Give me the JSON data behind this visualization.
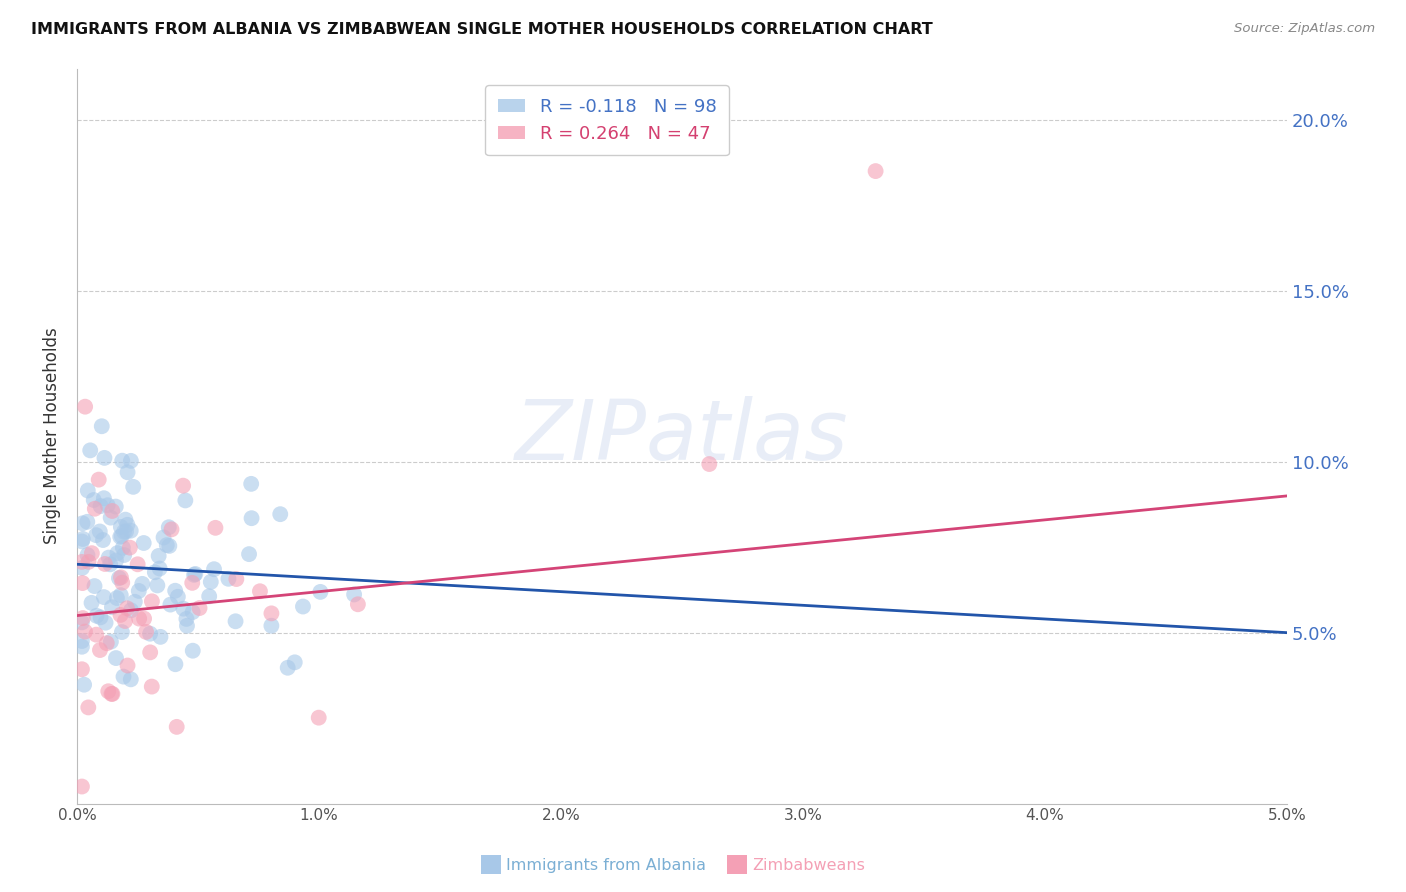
{
  "title": "IMMIGRANTS FROM ALBANIA VS ZIMBABWEAN SINGLE MOTHER HOUSEHOLDS CORRELATION CHART",
  "source": "Source: ZipAtlas.com",
  "ylabel": "Single Mother Households",
  "y_ticks": [
    0.05,
    0.1,
    0.15,
    0.2
  ],
  "y_tick_labels": [
    "5.0%",
    "10.0%",
    "15.0%",
    "20.0%"
  ],
  "x_ticks": [
    0.0,
    0.01,
    0.02,
    0.03,
    0.04,
    0.05
  ],
  "x_tick_labels": [
    "0.0%",
    "1.0%",
    "2.0%",
    "3.0%",
    "4.0%",
    "5.0%"
  ],
  "x_min": 0.0,
  "x_max": 0.05,
  "y_min": 0.0,
  "y_max": 0.215,
  "series1_color": "#a8c8e8",
  "series2_color": "#f4a0b5",
  "trendline1_color": "#2255aa",
  "trendline2_color": "#d44477",
  "albania_R": -0.118,
  "albania_N": 98,
  "zimbabwe_R": 0.264,
  "zimbabwe_N": 47,
  "background_color": "#ffffff",
  "grid_color": "#cccccc",
  "watermark": "ZIPatlas"
}
